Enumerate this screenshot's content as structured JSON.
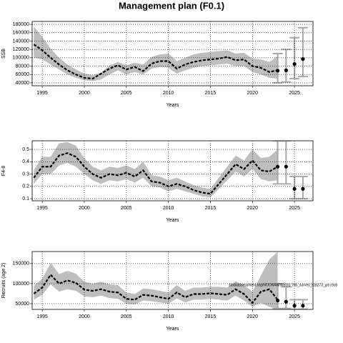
{
  "title": "Management plan (F0.1)",
  "chart_data": [
    {
      "type": "line",
      "x_label": "Years",
      "y_label": "SSB",
      "grid": true,
      "color": "#000000",
      "band_color": "#bebebe",
      "bar_color": "#a8a8a8",
      "xlim": [
        1993.8,
        2027.2
      ],
      "xticks": [
        1995,
        2000,
        2005,
        2010,
        2015,
        2020,
        2025
      ],
      "ylim": [
        33000,
        187000
      ],
      "yticks": [
        40000,
        60000,
        80000,
        100000,
        120000,
        140000,
        160000,
        180000
      ],
      "x": [
        1994,
        1995,
        1996,
        1997,
        1998,
        1999,
        2000,
        2001,
        2002,
        2003,
        2004,
        2005,
        2006,
        2007,
        2008,
        2009,
        2010,
        2011,
        2012,
        2013,
        2014,
        2015,
        2016,
        2017,
        2018,
        2019,
        2020,
        2021,
        2022,
        2023
      ],
      "values": [
        132000,
        118000,
        100000,
        84000,
        70000,
        60000,
        52000,
        50000,
        62000,
        74000,
        82000,
        72000,
        78000,
        68000,
        86000,
        92000,
        92000,
        74000,
        84000,
        90000,
        94000,
        96000,
        98000,
        102000,
        94000,
        96000,
        80000,
        76000,
        66000,
        70000
      ],
      "upper": [
        175000,
        150000,
        122000,
        100000,
        84000,
        72000,
        62000,
        58000,
        64000,
        82000,
        90000,
        82000,
        88000,
        84000,
        102000,
        108000,
        110000,
        92000,
        100000,
        108000,
        112000,
        114000,
        116000,
        118000,
        110000,
        112000,
        98000,
        96000,
        90000,
        104000
      ],
      "lower": [
        100000,
        96000,
        84000,
        72000,
        60000,
        52000,
        46000,
        44000,
        48000,
        60000,
        70000,
        60000,
        66000,
        60000,
        74000,
        78000,
        76000,
        62000,
        70000,
        76000,
        80000,
        82000,
        84000,
        86000,
        80000,
        80000,
        66000,
        60000,
        52000,
        50000
      ],
      "forecast": {
        "x": [
          2023,
          2024,
          2025,
          2026
        ],
        "values": [
          69000,
          70000,
          85000,
          97000
        ],
        "lower": [
          40000,
          42000,
          50000,
          55000
        ],
        "upper": [
          110000,
          120000,
          148000,
          172000
        ]
      }
    },
    {
      "type": "line",
      "x_label": "Years",
      "y_label": "F4-8",
      "grid": true,
      "color": "#000000",
      "band_color": "#bebebe",
      "bar_color": "#a8a8a8",
      "xlim": [
        1993.8,
        2027.2
      ],
      "xticks": [
        1995,
        2000,
        2005,
        2010,
        2015,
        2020,
        2025
      ],
      "ylim": [
        0.083,
        0.57
      ],
      "yticks": [
        0.1,
        0.2,
        0.3,
        0.4,
        0.5
      ],
      "x": [
        1994,
        1995,
        1996,
        1997,
        1998,
        1999,
        2000,
        2001,
        2002,
        2003,
        2004,
        2005,
        2006,
        2007,
        2008,
        2009,
        2010,
        2011,
        2012,
        2013,
        2014,
        2015,
        2016,
        2017,
        2018,
        2019,
        2020,
        2021,
        2022,
        2023
      ],
      "values": [
        0.27,
        0.36,
        0.36,
        0.45,
        0.47,
        0.44,
        0.36,
        0.3,
        0.27,
        0.3,
        0.29,
        0.31,
        0.28,
        0.33,
        0.24,
        0.23,
        0.2,
        0.22,
        0.2,
        0.17,
        0.15,
        0.14,
        0.22,
        0.3,
        0.38,
        0.34,
        0.41,
        0.33,
        0.32,
        0.36
      ],
      "upper": [
        0.33,
        0.44,
        0.44,
        0.55,
        0.56,
        0.53,
        0.43,
        0.36,
        0.33,
        0.36,
        0.35,
        0.37,
        0.34,
        0.4,
        0.29,
        0.28,
        0.25,
        0.27,
        0.24,
        0.21,
        0.19,
        0.18,
        0.27,
        0.36,
        0.45,
        0.41,
        0.5,
        0.43,
        0.44,
        0.5
      ],
      "lower": [
        0.22,
        0.3,
        0.3,
        0.37,
        0.39,
        0.36,
        0.3,
        0.25,
        0.22,
        0.25,
        0.24,
        0.26,
        0.23,
        0.27,
        0.2,
        0.19,
        0.16,
        0.18,
        0.16,
        0.14,
        0.12,
        0.11,
        0.18,
        0.25,
        0.32,
        0.28,
        0.34,
        0.26,
        0.24,
        0.25
      ],
      "forecast": {
        "x": [
          2023,
          2024,
          2025,
          2026
        ],
        "values": [
          0.36,
          0.36,
          0.18,
          0.18
        ],
        "lower": [
          0.22,
          0.22,
          0.1,
          0.1
        ],
        "upper": [
          0.57,
          0.57,
          0.28,
          0.28
        ]
      }
    },
    {
      "type": "line",
      "x_label": "Years",
      "y_label": "Recruits (age 2)",
      "grid": true,
      "color": "#000000",
      "band_color": "#bebebe",
      "bar_color": "#a8a8a8",
      "annotation": "stockassessment.org/NOONAN/WBSS_NS_survey_r18273_git:c9c8",
      "xlim": [
        1993.8,
        2027.2
      ],
      "xticks": [
        1995,
        2000,
        2005,
        2010,
        2015,
        2020,
        2025
      ],
      "ylim": [
        35700,
        180000
      ],
      "yticks": [
        50000,
        100000,
        150000
      ],
      "x": [
        1994,
        1995,
        1996,
        1997,
        1998,
        1999,
        2000,
        2001,
        2002,
        2003,
        2004,
        2005,
        2006,
        2007,
        2008,
        2009,
        2010,
        2011,
        2012,
        2013,
        2014,
        2015,
        2016,
        2017,
        2018,
        2019,
        2020,
        2021,
        2022,
        2023
      ],
      "values": [
        75000,
        90000,
        122000,
        100000,
        108000,
        102000,
        85000,
        82000,
        86000,
        80000,
        78000,
        62000,
        60000,
        72000,
        70000,
        66000,
        62000,
        78000,
        66000,
        74000,
        74000,
        76000,
        74000,
        72000,
        86000,
        74000,
        52000,
        80000,
        86000,
        60000
      ],
      "upper": [
        95000,
        112000,
        152000,
        124000,
        132000,
        125000,
        105000,
        100000,
        105000,
        98000,
        96000,
        78000,
        74000,
        88000,
        86000,
        82000,
        78000,
        96000,
        82000,
        90000,
        90000,
        92000,
        92000,
        90000,
        106000,
        96000,
        80000,
        120000,
        160000,
        180000
      ],
      "lower": [
        60000,
        72000,
        98000,
        80000,
        86000,
        82000,
        68000,
        66000,
        70000,
        64000,
        62000,
        50000,
        48000,
        58000,
        56000,
        53000,
        50000,
        63000,
        53000,
        60000,
        60000,
        62000,
        60000,
        58000,
        70000,
        58000,
        42000,
        52000,
        42000,
        36000
      ],
      "forecast": {
        "x": [
          2023,
          2024,
          2025,
          2026
        ],
        "values": [
          58000,
          55000,
          45000,
          45000
        ],
        "lower": [
          38000,
          38000,
          36000,
          36000
        ],
        "upper": [
          100000,
          92000,
          60000,
          60000
        ]
      }
    }
  ]
}
